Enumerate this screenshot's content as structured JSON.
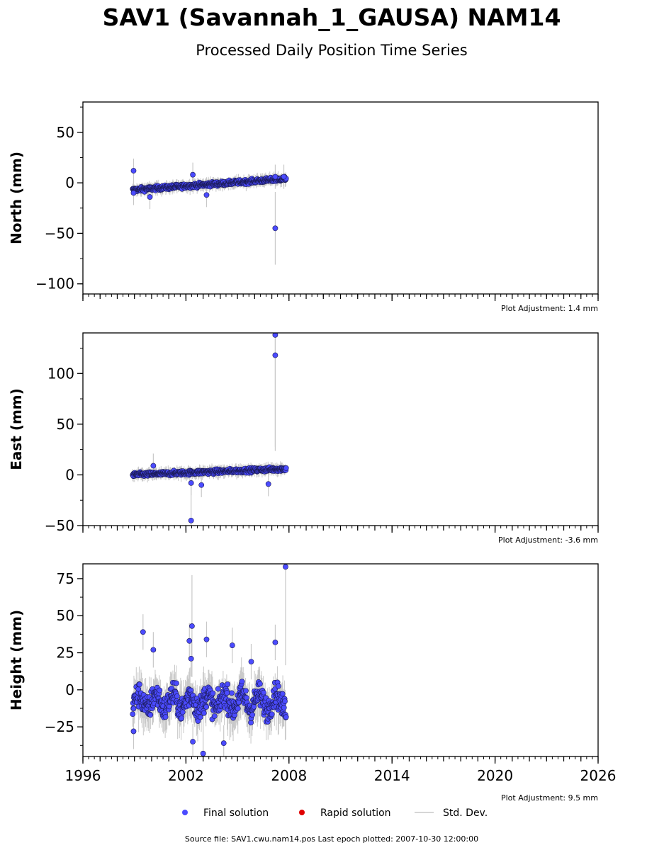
{
  "chart_data": {
    "type": "scatter",
    "title": "SAV1 (Savannah_1_GAUSA) NAM14",
    "subtitle": "Processed Daily Position Time Series",
    "xlim": [
      1996,
      2026
    ],
    "x_ticks": [
      1996,
      2002,
      2008,
      2014,
      2020,
      2026
    ],
    "data_range": [
      1998.9,
      2007.83
    ],
    "colors": {
      "final": "#4b4bff",
      "rapid": "#e00000",
      "std": "#c8c8c8"
    },
    "panels": [
      {
        "ylabel": "North (mm)",
        "ylim": [
          -110,
          80
        ],
        "yticks": [
          50,
          0,
          -50,
          -100
        ],
        "adjustment": "Plot Adjustment: 1.4 mm",
        "core_band": [
          -7,
          4
        ],
        "spread": 2.2,
        "outliers": [
          {
            "x": 1998.95,
            "y": 12
          },
          {
            "x": 1998.95,
            "y": -10
          },
          {
            "x": 1999.9,
            "y": -14
          },
          {
            "x": 2002.4,
            "y": 8
          },
          {
            "x": 2003.2,
            "y": -12
          },
          {
            "x": 2007.2,
            "y": -45
          },
          {
            "x": 2007.2,
            "y": 6
          },
          {
            "x": 2007.7,
            "y": 6
          }
        ]
      },
      {
        "ylabel": "East (mm)",
        "ylim": [
          -50,
          140
        ],
        "yticks": [
          100,
          50,
          0,
          -50
        ],
        "adjustment": "Plot Adjustment: -3.6 mm",
        "core_band": [
          0,
          6
        ],
        "spread": 2.2,
        "outliers": [
          {
            "x": 2002.3,
            "y": -45
          },
          {
            "x": 2002.3,
            "y": -8
          },
          {
            "x": 2002.9,
            "y": -10
          },
          {
            "x": 2000.1,
            "y": 9
          },
          {
            "x": 2006.8,
            "y": -9
          },
          {
            "x": 2007.2,
            "y": 138
          },
          {
            "x": 2007.2,
            "y": 118
          }
        ]
      },
      {
        "ylabel": "Height (mm)",
        "ylim": [
          -45,
          85
        ],
        "yticks": [
          75,
          50,
          25,
          0,
          -25
        ],
        "adjustment": "Plot Adjustment: 9.5 mm",
        "core_band": [
          -8,
          -8
        ],
        "spread": 9,
        "outliers": [
          {
            "x": 1999.5,
            "y": 39
          },
          {
            "x": 2000.1,
            "y": 27
          },
          {
            "x": 2002.2,
            "y": 33
          },
          {
            "x": 2002.35,
            "y": 43
          },
          {
            "x": 2002.3,
            "y": 21
          },
          {
            "x": 2003.2,
            "y": 34
          },
          {
            "x": 2004.7,
            "y": 30
          },
          {
            "x": 2005.8,
            "y": 19
          },
          {
            "x": 2007.2,
            "y": 32
          },
          {
            "x": 2007.8,
            "y": 83
          },
          {
            "x": 1998.95,
            "y": -28
          },
          {
            "x": 2003.0,
            "y": -43
          },
          {
            "x": 2002.4,
            "y": -35
          },
          {
            "x": 2004.2,
            "y": -36
          }
        ]
      }
    ],
    "legend": [
      {
        "label": "Final solution",
        "kind": "final"
      },
      {
        "label": "Rapid solution",
        "kind": "rapid"
      },
      {
        "label": "Std. Dev.",
        "kind": "std"
      }
    ],
    "footer": "Source file: SAV1.cwu.nam14.pos  Last epoch plotted: 2007-10-30 12:00:00",
    "legend_position": "bottom-center",
    "grid": false
  }
}
